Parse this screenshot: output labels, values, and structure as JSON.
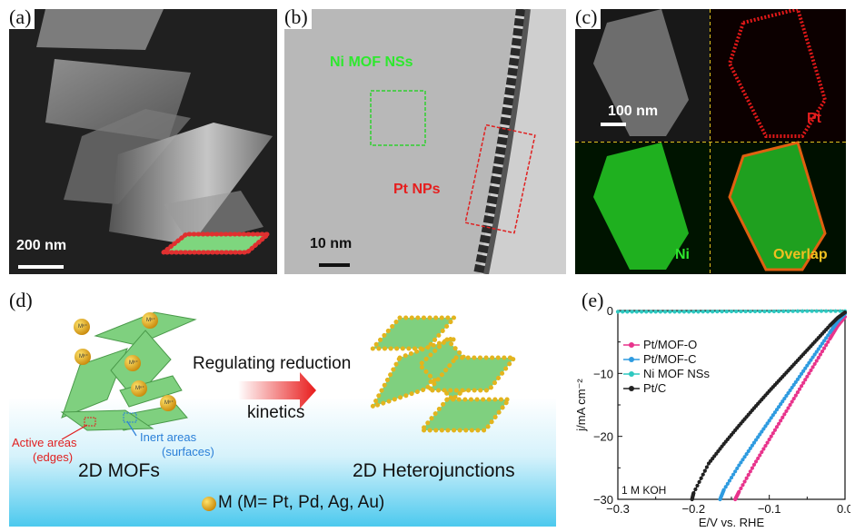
{
  "panels": {
    "a": {
      "label": "(a)",
      "scalebar": "200 nm"
    },
    "b": {
      "label": "(b)",
      "region1": "Ni MOF NSs",
      "region2": "Pt NPs",
      "scalebar": "10 nm"
    },
    "c": {
      "label": "(c)",
      "scalebar": "100 nm",
      "pt": "Pt",
      "ni": "Ni",
      "overlap": "Overlap"
    },
    "d": {
      "label": "(d)",
      "ion": "Mⁿ⁺",
      "arrow_top": "Regulating reduction",
      "arrow_bottom": "kinetics",
      "active_line1": "Active areas",
      "active_line2": "(edges)",
      "inert_line1": "Inert areas",
      "inert_line2": "(surfaces)",
      "left_title": "2D MOFs",
      "right_title": "2D Heterojunctions",
      "footer": "M (M= Pt, Pd, Ag, Au)"
    },
    "e": {
      "label": "(e)"
    }
  },
  "chart_data": {
    "type": "line",
    "xlabel": "E/V vs. RHE",
    "ylabel": "j/mA cm⁻²",
    "xlim": [
      -0.3,
      0.0
    ],
    "ylim": [
      -30,
      0
    ],
    "xticks": [
      -0.3,
      -0.2,
      -0.1,
      0.0
    ],
    "xtick_labels": [
      "−0.3",
      "−0.2",
      "−0.1",
      "0.0"
    ],
    "yticks": [
      0,
      -10,
      -20,
      -30
    ],
    "ytick_labels": [
      "0",
      "−10",
      "−20",
      "−30"
    ],
    "annotation": "1 M KOH",
    "legend_position": "upper-left",
    "series": [
      {
        "name": "Pt/MOF-O",
        "color": "#e8348c",
        "x": [
          0.0,
          -0.01,
          -0.02,
          -0.04,
          -0.06,
          -0.08,
          -0.1,
          -0.12,
          -0.14,
          -0.145
        ],
        "y": [
          -1.0,
          -2.5,
          -4.5,
          -8.5,
          -12.5,
          -16.5,
          -20.5,
          -24.5,
          -28.8,
          -30
        ]
      },
      {
        "name": "Pt/MOF-C",
        "color": "#2e9be0",
        "x": [
          0.0,
          -0.01,
          -0.02,
          -0.04,
          -0.06,
          -0.08,
          -0.1,
          -0.12,
          -0.14,
          -0.16,
          -0.165
        ],
        "y": [
          -0.5,
          -1.8,
          -3.5,
          -7.0,
          -10.5,
          -14.0,
          -17.5,
          -21.0,
          -24.6,
          -28.5,
          -30
        ]
      },
      {
        "name": "Ni MOF NSs",
        "color": "#2ec8c0",
        "x": [
          0.0,
          -0.05,
          -0.1,
          -0.15,
          -0.2,
          -0.25,
          -0.3
        ],
        "y": [
          -0.1,
          -0.1,
          -0.15,
          -0.15,
          -0.2,
          -0.2,
          -0.2
        ]
      },
      {
        "name": "Pt/C",
        "color": "#222222",
        "x": [
          0.0,
          -0.01,
          -0.02,
          -0.04,
          -0.06,
          -0.08,
          -0.1,
          -0.12,
          -0.14,
          -0.16,
          -0.18,
          -0.2,
          -0.202
        ],
        "y": [
          -0.3,
          -1.2,
          -2.4,
          -5.0,
          -7.6,
          -10.2,
          -12.8,
          -15.5,
          -18.3,
          -21.2,
          -24.3,
          -29.0,
          -30
        ]
      }
    ]
  }
}
